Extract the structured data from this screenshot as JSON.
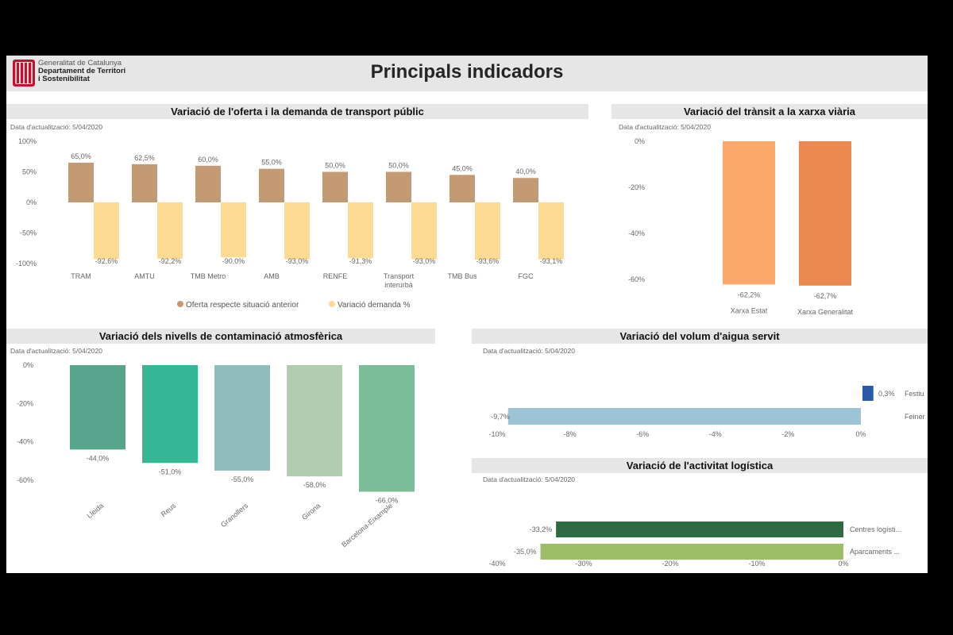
{
  "header": {
    "org_line1": "Generalitat de Catalunya",
    "org_line2": "Departament de Territori",
    "org_line3": "i Sostenibilitat",
    "title": "Principals indicadors"
  },
  "colors": {
    "oferta": "#c49a74",
    "demanda": "#fedb93",
    "xarxa_estat": "#fba96b",
    "xarxa_generalitat": "#ec8951",
    "festiu": "#2a5ba8",
    "feiner": "#9cc3d6",
    "centres": "#2e6b42",
    "aparcaments": "#9cbf64",
    "section_bg": "#e6e6e6"
  },
  "chart_data": [
    {
      "id": "transport",
      "type": "bar",
      "title": "Variació de l'oferta i la demanda de transport públic",
      "update": "Data d'actualització: 5/04/2020",
      "categories": [
        "TRAM",
        "AMTU",
        "TMB Metro",
        "AMB",
        "RENFE",
        "Transport interurbà",
        "TMB Bus",
        "FGC"
      ],
      "category_lines": [
        [
          "TRAM"
        ],
        [
          "AMTU"
        ],
        [
          "TMB Metro"
        ],
        [
          "AMB"
        ],
        [
          "RENFE"
        ],
        [
          "Transport",
          "interurbà"
        ],
        [
          "TMB Bus"
        ],
        [
          "FGC"
        ]
      ],
      "series": [
        {
          "name": "Oferta respecte situació anterior",
          "values": [
            65.0,
            62.5,
            60.0,
            55.0,
            50.0,
            50.0,
            45.0,
            40.0
          ],
          "labels": [
            "65,0%",
            "62,5%",
            "60,0%",
            "55,0%",
            "50,0%",
            "50,0%",
            "45,0%",
            "40,0%"
          ]
        },
        {
          "name": "Variació demanda %",
          "values": [
            -92.6,
            -92.2,
            -90.0,
            -93.0,
            -91.3,
            -93.0,
            -93.6,
            -93.1
          ],
          "labels": [
            "-92,6%",
            "-92,2%",
            "-90,0%",
            "-93,0%",
            "-91,3%",
            "-93,0%",
            "-93,6%",
            "-93,1%"
          ]
        }
      ],
      "yticks": [
        "100%",
        "50%",
        "0%",
        "-50%",
        "-100%"
      ],
      "ytick_values": [
        100,
        50,
        0,
        -50,
        -100
      ],
      "ylim": [
        -100,
        100
      ],
      "legend": "bottom-right"
    },
    {
      "id": "transit",
      "type": "bar",
      "title": "Variació del trànsit a la xarxa viària",
      "update": "Data d'actualització: 5/04/2020",
      "categories": [
        "Xarxa Estat",
        "Xarxa Generalitat"
      ],
      "values": [
        -62.2,
        -62.7
      ],
      "labels": [
        "-62,2%",
        "-62,7%"
      ],
      "yticks": [
        "0%",
        "-20%",
        "-40%",
        "-60%"
      ],
      "ytick_values": [
        0,
        -20,
        -40,
        -60
      ],
      "ylim": [
        -62.7,
        0
      ]
    },
    {
      "id": "contaminacio",
      "type": "bar",
      "title": "Variació dels nivells de contaminació atmosfèrica",
      "update": "Data d'actualització: 5/04/2020",
      "categories": [
        "Lleida",
        "Reus",
        "Granollers",
        "Girona",
        "Barcelona-Eixample"
      ],
      "values": [
        -44.0,
        -51.0,
        -55.0,
        -58.0,
        -66.0
      ],
      "labels": [
        "-44,0%",
        "-51,0%",
        "-55,0%",
        "-58,0%",
        "-66,0%"
      ],
      "colors": [
        "#57a38b",
        "#35b795",
        "#91bcbc",
        "#b0cdaf",
        "#7bbd98"
      ],
      "yticks": [
        "0%",
        "-20%",
        "-40%",
        "-60%"
      ],
      "ytick_values": [
        0,
        -20,
        -40,
        -60
      ],
      "ylim": [
        -66,
        0
      ]
    },
    {
      "id": "aigua",
      "type": "bar",
      "orientation": "horizontal",
      "title": "Variació del volum d'aigua servit",
      "update": "Data d'actualització: 5/04/2020",
      "categories": [
        "Festiu",
        "Feiner"
      ],
      "values": [
        0.3,
        -9.7
      ],
      "labels": [
        "0,3%",
        "-9,7%"
      ],
      "xticks": [
        "-10%",
        "-8%",
        "-6%",
        "-4%",
        "-2%",
        "0%"
      ],
      "xtick_values": [
        -10,
        -8,
        -6,
        -4,
        -2,
        0
      ],
      "xlim": [
        -10,
        0
      ]
    },
    {
      "id": "logistica",
      "type": "bar",
      "orientation": "horizontal",
      "title": "Variació de l'activitat logística",
      "update": "Data d'actualització: 5/04/2020",
      "categories": [
        "Centres logísti...",
        "Aparcaments ..."
      ],
      "values": [
        -33.2,
        -35.0
      ],
      "labels": [
        "-33,2%",
        "-35,0%"
      ],
      "xticks": [
        "-40%",
        "-30%",
        "-20%",
        "-10%",
        "0%"
      ],
      "xtick_values": [
        -40,
        -30,
        -20,
        -10,
        0
      ],
      "xlim": [
        -40,
        0
      ]
    }
  ]
}
